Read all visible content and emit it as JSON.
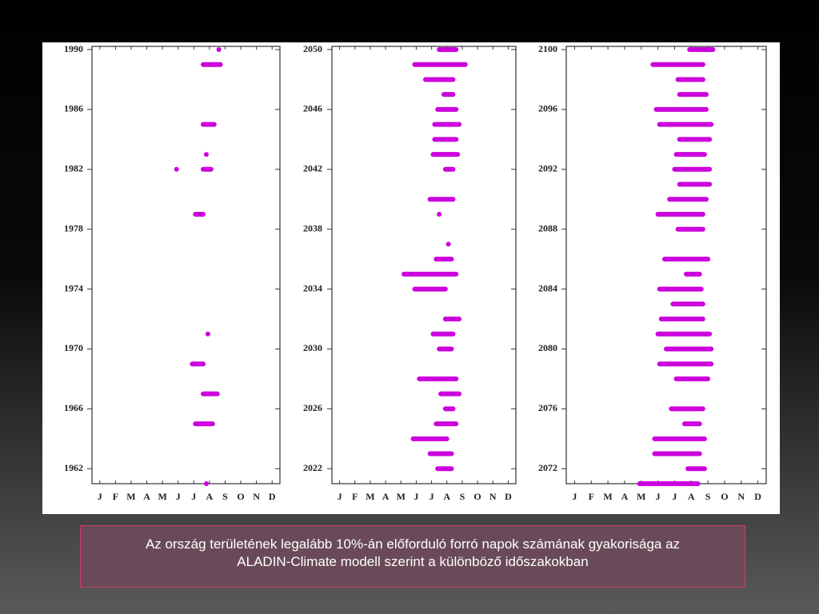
{
  "chart_data": [
    {
      "type": "timeline",
      "color": "#cc00dd",
      "ylim": [
        1961,
        1990
      ],
      "yticks": [
        1962,
        1966,
        1970,
        1974,
        1978,
        1982,
        1986,
        1990
      ],
      "xlim": [
        0.5,
        12.5
      ],
      "xticks": [
        {
          "value": 1,
          "label": "J"
        },
        {
          "value": 2,
          "label": "F"
        },
        {
          "value": 3,
          "label": "M"
        },
        {
          "value": 4,
          "label": "A"
        },
        {
          "value": 5,
          "label": "M"
        },
        {
          "value": 6,
          "label": "J"
        },
        {
          "value": 7,
          "label": "J"
        },
        {
          "value": 8,
          "label": "A"
        },
        {
          "value": 9,
          "label": "S"
        },
        {
          "value": 10,
          "label": "O"
        },
        {
          "value": 11,
          "label": "N"
        },
        {
          "value": 12,
          "label": "D"
        }
      ],
      "years": [
        1990,
        1989,
        1985,
        1983,
        1982,
        1982,
        1979,
        1971,
        1969,
        1967,
        1965,
        1961
      ],
      "start": [
        8.6,
        7.6,
        7.6,
        7.8,
        5.9,
        7.6,
        7.1,
        7.9,
        6.9,
        7.6,
        7.1,
        7.8
      ],
      "end": [
        8.6,
        8.7,
        8.3,
        7.8,
        5.9,
        8.1,
        7.6,
        7.9,
        7.6,
        8.5,
        8.2,
        7.8
      ]
    },
    {
      "type": "timeline",
      "color": "#cc00dd",
      "ylim": [
        2021,
        2050
      ],
      "yticks": [
        2022,
        2026,
        2030,
        2034,
        2038,
        2042,
        2046,
        2050
      ],
      "xlim": [
        0.5,
        12.5
      ],
      "xticks": [
        {
          "value": 1,
          "label": "J"
        },
        {
          "value": 2,
          "label": "F"
        },
        {
          "value": 3,
          "label": "M"
        },
        {
          "value": 4,
          "label": "A"
        },
        {
          "value": 5,
          "label": "M"
        },
        {
          "value": 6,
          "label": "J"
        },
        {
          "value": 7,
          "label": "J"
        },
        {
          "value": 8,
          "label": "A"
        },
        {
          "value": 9,
          "label": "S"
        },
        {
          "value": 10,
          "label": "O"
        },
        {
          "value": 11,
          "label": "N"
        },
        {
          "value": 12,
          "label": "D"
        }
      ],
      "years": [
        2050,
        2049,
        2048,
        2047,
        2046,
        2045,
        2044,
        2043,
        2042,
        2040,
        2039,
        2037,
        2036,
        2035,
        2034,
        2032,
        2031,
        2030,
        2028,
        2027,
        2026,
        2025,
        2024,
        2023,
        2022
      ],
      "start": [
        7.5,
        5.9,
        6.6,
        7.8,
        7.4,
        7.2,
        7.2,
        7.1,
        7.9,
        6.9,
        7.5,
        8.1,
        7.3,
        5.2,
        5.9,
        7.9,
        7.1,
        7.5,
        6.2,
        7.6,
        7.9,
        7.3,
        5.8,
        6.9,
        7.4
      ],
      "end": [
        8.6,
        9.2,
        8.4,
        8.4,
        8.6,
        8.8,
        8.6,
        8.7,
        8.4,
        8.4,
        7.5,
        8.1,
        8.3,
        8.6,
        7.9,
        8.8,
        8.4,
        8.3,
        8.6,
        8.8,
        8.4,
        8.6,
        8.0,
        8.3,
        8.3
      ]
    },
    {
      "type": "timeline",
      "color": "#cc00dd",
      "ylim": [
        2071,
        2100
      ],
      "yticks": [
        2072,
        2076,
        2080,
        2084,
        2088,
        2092,
        2096,
        2100
      ],
      "xlim": [
        0.5,
        12.5
      ],
      "xticks": [
        {
          "value": 1,
          "label": "J"
        },
        {
          "value": 2,
          "label": "F"
        },
        {
          "value": 3,
          "label": "M"
        },
        {
          "value": 4,
          "label": "A"
        },
        {
          "value": 5,
          "label": "M"
        },
        {
          "value": 6,
          "label": "J"
        },
        {
          "value": 7,
          "label": "J"
        },
        {
          "value": 8,
          "label": "A"
        },
        {
          "value": 9,
          "label": "S"
        },
        {
          "value": 10,
          "label": "O"
        },
        {
          "value": 11,
          "label": "N"
        },
        {
          "value": 12,
          "label": "D"
        }
      ],
      "years": [
        2100,
        2099,
        2098,
        2097,
        2096,
        2095,
        2094,
        2093,
        2092,
        2091,
        2090,
        2089,
        2088,
        2086,
        2085,
        2084,
        2083,
        2082,
        2081,
        2080,
        2079,
        2078,
        2076,
        2075,
        2074,
        2073,
        2072,
        2071
      ],
      "start": [
        7.9,
        5.7,
        7.2,
        7.3,
        5.9,
        6.1,
        7.3,
        7.1,
        7.0,
        7.3,
        6.7,
        6.0,
        7.2,
        6.4,
        7.7,
        6.1,
        6.9,
        6.2,
        6.0,
        6.5,
        6.1,
        7.1,
        6.8,
        7.6,
        5.8,
        5.8,
        7.8,
        4.9
      ],
      "end": [
        9.3,
        8.7,
        8.7,
        8.9,
        8.9,
        9.2,
        9.1,
        8.8,
        9.1,
        9.1,
        8.9,
        8.7,
        8.7,
        9.0,
        8.5,
        8.6,
        8.7,
        8.7,
        9.1,
        9.2,
        9.2,
        9.0,
        8.7,
        8.5,
        8.8,
        8.5,
        8.8,
        8.4
      ]
    }
  ],
  "caption": "Az ország területének legalább 10%-án előforduló forró napok számának gyakorisága az ALADIN-Climate modell szerint a különböző időszakokban"
}
